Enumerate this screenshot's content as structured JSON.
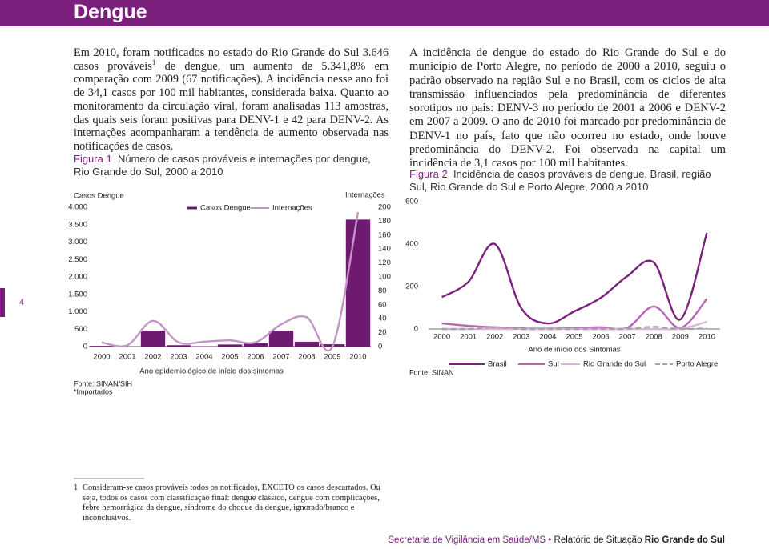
{
  "header": {
    "title": "Dengue"
  },
  "page_number": "4",
  "left_text": {
    "part1": "Em 2010, foram notificados no estado do Rio Grande do Sul 3.646 casos prováveis",
    "footnote_ref": "1",
    "part2": " de dengue, um aumento de 5.341,8% em comparação com 2009 (67 notificações). A incidência nesse ano foi de 34,1 casos por 100 mil habitantes, considerada baixa. Quanto ao monitoramento da circulação viral, foram analisadas 113 amostras, das quais seis foram positivas para DENV-1 e 42 para DENV-2. As internações acompanharam a tendência de aumento observada nas notificações de casos."
  },
  "right_text": "A incidência de dengue do estado do Rio Grande do Sul e do município de Porto Alegre, no período de 2000 a 2010, seguiu o padrão observado na região Sul e no Brasil, com os ciclos de alta transmissão influenciados pela predominância de diferentes sorotipos no país: DENV-3 no período de 2001 a 2006 e DENV-2 em 2007 a 2009. O ano de 2010 foi marcado por predominância de DENV-1 no país, fato que não ocorreu no estado, onde houve predominância do DENV-2. Foi observada na capital um incidência de 3,1 casos por 100 mil habitantes.",
  "footnote": {
    "number": "1",
    "text": "Consideram-se casos prováveis todos os notificados, EXCETO os casos descartados. Ou seja, todos os casos com classificação final: dengue clássico, dengue com complicações, febre hemorrágica da dengue, síndrome do choque da dengue, ignorado/branco e inconclusivos."
  },
  "footer": {
    "organization": "Secretaria de Vigilância em Saúde/MS",
    "separator": "•",
    "report": "Relatório de Situação",
    "state": "Rio Grande do Sul"
  },
  "chart_data": [
    {
      "type": "bar",
      "figure_label": "Figura 1",
      "title": "Número de casos prováveis e internações por dengue, Rio Grande do Sul, 2000 a 2010",
      "categories": [
        "2000",
        "2001",
        "2002",
        "2003",
        "2004",
        "2005",
        "2006",
        "2007",
        "2008",
        "2009",
        "2010"
      ],
      "x_label": "Ano epidemiológico de início dos sintomas",
      "y_label": "Casos Dengue",
      "y2_label": "Internações",
      "series": [
        {
          "name": "Casos Dengue",
          "type": "bar",
          "color": "#6e1a70",
          "values": [
            20,
            5,
            460,
            40,
            10,
            60,
            100,
            460,
            140,
            67,
            3646
          ]
        },
        {
          "name": "Internações",
          "type": "line",
          "axis": "y2",
          "color": "#c493c7",
          "values": [
            6,
            2,
            37,
            6,
            7,
            9,
            6,
            32,
            42,
            0,
            193
          ]
        }
      ],
      "ylim": [
        0,
        4000
      ],
      "yticks": [
        0,
        500,
        {
          "value": 1000,
          "label": "1.000"
        },
        {
          "value": 1500,
          "label": "1.500"
        },
        {
          "value": 2000,
          "label": "2.000"
        },
        {
          "value": 2500,
          "label": "2.500"
        },
        {
          "value": 3000,
          "label": "3.000"
        },
        {
          "value": 3500,
          "label": "3.500"
        },
        {
          "value": 4000,
          "label": "4.000"
        }
      ],
      "y2lim": [
        0,
        200
      ],
      "y2ticks": [
        0,
        20,
        40,
        60,
        80,
        100,
        120,
        140,
        160,
        180,
        200
      ],
      "source": "Fonte: SINAN/SIH",
      "note": "*Importados"
    },
    {
      "type": "line",
      "figure_label": "Figura 2",
      "title": "Incidência de casos prováveis de dengue, Brasil, região Sul, Rio Grande do Sul e Porto Alegre, 2000 a 2010",
      "categories": [
        "2000",
        "2001",
        "2002",
        "2003",
        "2004",
        "2005",
        "2006",
        "2007",
        "2008",
        "2009",
        "2010"
      ],
      "x_label": "Ano de início dos Sintomas",
      "series": [
        {
          "name": "Brasil",
          "color": "#7b2180",
          "style": "solid",
          "values": [
            150,
            222,
            400,
            98,
            26,
            83,
            147,
            249,
            313,
            45,
            453
          ]
        },
        {
          "name": "Sul",
          "color": "#b665b4",
          "style": "solid",
          "values": [
            26,
            15,
            8,
            3,
            2,
            4,
            8,
            6,
            106,
            5,
            142
          ]
        },
        {
          "name": "Rio Grande do Sul",
          "color": "#dcb3da",
          "style": "solid",
          "values": [
            0,
            0,
            0,
            0,
            0,
            0,
            0,
            0,
            0,
            1,
            34
          ]
        },
        {
          "name": "Porto Alegre",
          "color": "#a3a3a3",
          "style": "dashed",
          "values": [
            0,
            0,
            8,
            0,
            0,
            0,
            0,
            1,
            10,
            0,
            3
          ]
        }
      ],
      "ylim": [
        0,
        600
      ],
      "yticks": [
        0,
        200,
        400,
        600
      ],
      "source": "Fonte: SINAN"
    }
  ]
}
